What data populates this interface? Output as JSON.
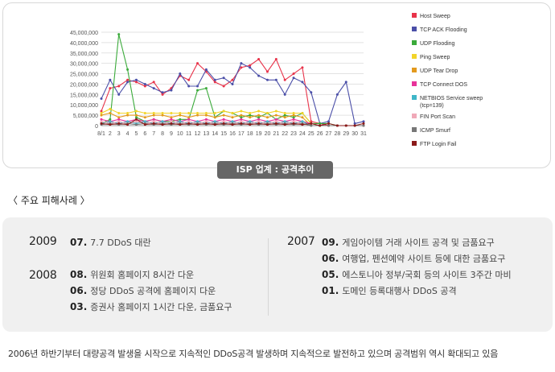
{
  "caption": "ISP 업계 : 공격추이",
  "section_title": "〈 주요 피해사례 〉",
  "cases": {
    "left": [
      {
        "year": "2009",
        "entries": [
          {
            "month": "07.",
            "text": "7.7 DDoS 대란"
          }
        ]
      },
      {
        "year": "2008",
        "entries": [
          {
            "month": "08.",
            "text": "위원회 홈페이지 8시간 다운"
          },
          {
            "month": "06.",
            "text": "정당 DDoS 공격에 홈페이지 다운"
          },
          {
            "month": "03.",
            "text": "증권사 홈페이지 1시간 다운, 금품요구"
          }
        ]
      }
    ],
    "right": [
      {
        "year": "2007",
        "entries": [
          {
            "month": "09.",
            "text": "게임아이템 거래 사이트 공격 및 금품요구"
          },
          {
            "month": "06.",
            "text": "여행업, 펜션예약 사이트 등에 대한 금품요구"
          },
          {
            "month": "05.",
            "text": "에스토니아 정부/국회 등의 사이트 3주간 마비"
          },
          {
            "month": "01.",
            "text": "도메인 등록대행사 DDoS 공격"
          }
        ]
      }
    ]
  },
  "footer": "2006년 하반기부터 대량공격 발생을 시작으로 지속적인 DDoS공격 발생하며 지속적으로 발전하고 있으며 공격범위 역시 확대되고 있음",
  "chart_data": {
    "type": "line",
    "title": "",
    "xlabel": "",
    "ylabel": "",
    "categories": [
      "8/1",
      "2",
      "3",
      "4",
      "5",
      "6",
      "7",
      "8",
      "9",
      "10",
      "11",
      "12",
      "13",
      "14",
      "15",
      "16",
      "17",
      "18",
      "19",
      "20",
      "21",
      "22",
      "23",
      "24",
      "25",
      "26",
      "27",
      "28",
      "29",
      "30",
      "31"
    ],
    "ylim": [
      0,
      45000000
    ],
    "yticks": [
      0,
      5000000,
      10000000,
      15000000,
      20000000,
      25000000,
      30000000,
      35000000,
      40000000,
      45000000
    ],
    "ytick_labels": [
      "0",
      "5,000,000",
      "10,000,000",
      "15,000,000",
      "20,000,000",
      "25,000,000",
      "30,000,000",
      "35,000,000",
      "40,000,000",
      "45,000,000"
    ],
    "grid": true,
    "legend_position": "right",
    "series": [
      {
        "name": "Host Sweep",
        "color": "#e8334a",
        "values": [
          7000000,
          18000000,
          19000000,
          22000000,
          21000000,
          19000000,
          21000000,
          15000000,
          18000000,
          24000000,
          22000000,
          30000000,
          26000000,
          21000000,
          19000000,
          22000000,
          28000000,
          29000000,
          32000000,
          26000000,
          32000000,
          22000000,
          25000000,
          28000000,
          2000000,
          1000000,
          0,
          0,
          0,
          0,
          0
        ]
      },
      {
        "name": "TCP ACK Flooding",
        "color": "#4b4fa8",
        "values": [
          13000000,
          22000000,
          15000000,
          21000000,
          22000000,
          20000000,
          18000000,
          16000000,
          17000000,
          25000000,
          19000000,
          19000000,
          27000000,
          22000000,
          23000000,
          20000000,
          30000000,
          28000000,
          24000000,
          22000000,
          22000000,
          15000000,
          23000000,
          21000000,
          16000000,
          1000000,
          2000000,
          15000000,
          21000000,
          1000000,
          2000000
        ]
      },
      {
        "name": "UDP Flooding",
        "color": "#3aaa3a",
        "values": [
          1000000,
          3000000,
          44000000,
          27000000,
          4000000,
          2000000,
          3000000,
          2000000,
          2000000,
          3000000,
          3000000,
          17000000,
          18000000,
          4000000,
          7000000,
          6000000,
          4000000,
          5000000,
          4000000,
          6000000,
          3000000,
          5000000,
          4000000,
          6000000,
          1000000,
          1000000,
          1000000,
          0,
          0,
          0,
          0
        ]
      },
      {
        "name": "Ping Sweep",
        "color": "#f2d42a",
        "values": [
          6000000,
          8000000,
          6000000,
          6000000,
          7000000,
          6000000,
          6000000,
          6000000,
          6000000,
          6000000,
          6000000,
          6000000,
          6000000,
          6000000,
          7000000,
          6000000,
          7000000,
          6000000,
          7000000,
          6000000,
          7000000,
          6000000,
          6000000,
          6000000,
          1000000,
          0,
          0,
          0,
          0,
          0,
          0
        ]
      },
      {
        "name": "UDP Tear Drop",
        "color": "#e39a1e",
        "values": [
          5000000,
          6000000,
          4000000,
          5000000,
          5000000,
          4000000,
          5000000,
          5000000,
          4000000,
          5000000,
          4000000,
          5000000,
          5000000,
          4000000,
          5000000,
          4000000,
          5000000,
          4000000,
          5000000,
          4000000,
          5000000,
          4000000,
          5000000,
          4000000,
          0,
          0,
          0,
          0,
          0,
          0,
          0
        ]
      },
      {
        "name": "TCP Connect DOS",
        "color": "#e8339a",
        "values": [
          3000000,
          2000000,
          3000000,
          2000000,
          3000000,
          2000000,
          3000000,
          2000000,
          3000000,
          2000000,
          3000000,
          2000000,
          3000000,
          2000000,
          3000000,
          2000000,
          3000000,
          2000000,
          3000000,
          2000000,
          3000000,
          2000000,
          3000000,
          2000000,
          1000000,
          0,
          0,
          0,
          0,
          0,
          0
        ]
      },
      {
        "name": "NETBIOS Service sweep\n(tcp=139)",
        "color": "#3fb6c8",
        "values": [
          1000000,
          2000000,
          1000000,
          2000000,
          1000000,
          2000000,
          1000000,
          2000000,
          1000000,
          2000000,
          1000000,
          2000000,
          1000000,
          2000000,
          1000000,
          2000000,
          1000000,
          2000000,
          1000000,
          2000000,
          1000000,
          2000000,
          1000000,
          2000000,
          0,
          0,
          0,
          0,
          0,
          0,
          0
        ]
      },
      {
        "name": "FIN Port Scan",
        "color": "#f0a9b8",
        "values": [
          2000000,
          1000000,
          2000000,
          1000000,
          2000000,
          1000000,
          2000000,
          1000000,
          2000000,
          1000000,
          2000000,
          1000000,
          2000000,
          1000000,
          2000000,
          1000000,
          2000000,
          1000000,
          2000000,
          1000000,
          2000000,
          1000000,
          2000000,
          1000000,
          0,
          0,
          0,
          0,
          0,
          0,
          0
        ]
      },
      {
        "name": "ICMP Smurf",
        "color": "#777777",
        "values": [
          500000,
          1000000,
          500000,
          1000000,
          500000,
          1000000,
          500000,
          1000000,
          500000,
          1000000,
          500000,
          1000000,
          500000,
          1000000,
          500000,
          1000000,
          500000,
          1000000,
          500000,
          1000000,
          500000,
          1000000,
          500000,
          1000000,
          0,
          0,
          0,
          0,
          0,
          0,
          0
        ]
      },
      {
        "name": "FTP Login Fail",
        "color": "#8b1a1a",
        "values": [
          1000000,
          500000,
          1000000,
          500000,
          3000000,
          500000,
          1000000,
          500000,
          1000000,
          500000,
          1000000,
          500000,
          1000000,
          500000,
          1000000,
          500000,
          1000000,
          500000,
          1000000,
          500000,
          1000000,
          500000,
          1000000,
          500000,
          1000000,
          0,
          1000000,
          0,
          0,
          0,
          1000000
        ]
      }
    ]
  }
}
